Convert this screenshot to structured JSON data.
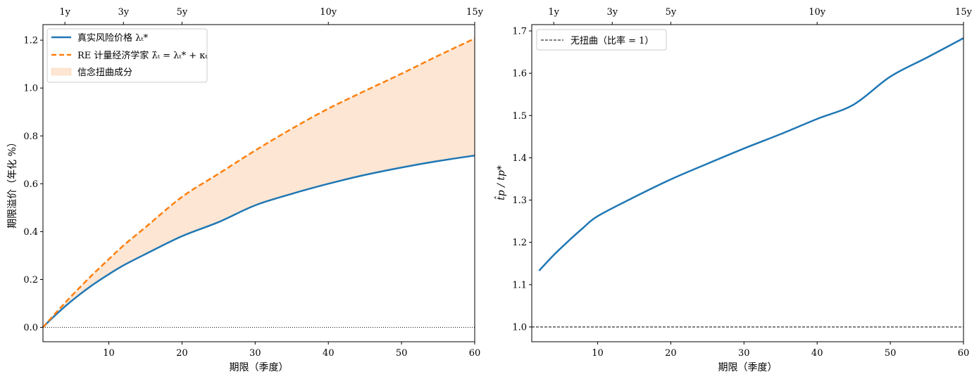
{
  "chart_data": [
    {
      "type": "line",
      "title": "",
      "xlabel": "期限（季度）",
      "ylabel": "期限溢价（年化 %）",
      "xlim": [
        1,
        60
      ],
      "ylim": [
        -0.06,
        1.265
      ],
      "x_ticks": [
        10,
        20,
        30,
        40,
        50,
        60
      ],
      "y_ticks": [
        0.0,
        0.2,
        0.4,
        0.6,
        0.8,
        1.0,
        1.2
      ],
      "y_tick_labels": [
        "0.0",
        "0.2",
        "0.4",
        "0.6",
        "0.8",
        "1.0",
        "1.2"
      ],
      "top_axis": {
        "ticks": [
          4,
          12,
          20,
          40,
          60
        ],
        "labels": [
          "1y",
          "3y",
          "5y",
          "10y",
          "15y"
        ]
      },
      "grid": false,
      "legend": {
        "position": "upper-left",
        "entries": [
          "真实风险价格 λₜ*",
          "RE 计量经济学家 λ̂ₜ = λₜ* + κₜ",
          "信念扭曲成分"
        ]
      },
      "reference_line": {
        "y": 0.0,
        "style": "dotted"
      },
      "x": [
        1,
        2,
        4,
        6,
        8,
        10,
        12,
        15,
        20,
        25,
        30,
        35,
        40,
        45,
        50,
        55,
        60
      ],
      "series": [
        {
          "name": "真实风险价格 λₜ*",
          "color": "#1f77b4",
          "style": "solid",
          "values": [
            0.0,
            0.031,
            0.087,
            0.137,
            0.182,
            0.222,
            0.259,
            0.306,
            0.381,
            0.44,
            0.51,
            0.558,
            0.6,
            0.637,
            0.668,
            0.695,
            0.718
          ]
        },
        {
          "name": "RE 计量经济学家 λ̂ₜ = λₜ* + κₜ",
          "color": "#ff7f0e",
          "style": "dashed",
          "values": [
            0.0,
            0.035,
            0.102,
            0.166,
            0.227,
            0.285,
            0.342,
            0.418,
            0.545,
            0.642,
            0.739,
            0.83,
            0.914,
            0.988,
            1.06,
            1.135,
            1.207
          ]
        }
      ],
      "fill_between": {
        "name": "信念扭曲成分",
        "color": "#fde6d3",
        "between": [
          "RE 计量经济学家 λ̂ₜ = λₜ* + κₜ",
          "真实风险价格 λₜ*"
        ]
      }
    },
    {
      "type": "line",
      "title": "",
      "xlabel": "期限（季度）",
      "ylabel": "t̂p / tp*",
      "xlim": [
        1,
        60
      ],
      "ylim": [
        0.965,
        1.715
      ],
      "x_ticks": [
        10,
        20,
        30,
        40,
        50,
        60
      ],
      "y_ticks": [
        1.0,
        1.1,
        1.2,
        1.3,
        1.4,
        1.5,
        1.6,
        1.7
      ],
      "y_tick_labels": [
        "1.0",
        "1.1",
        "1.2",
        "1.3",
        "1.4",
        "1.5",
        "1.6",
        "1.7"
      ],
      "top_axis": {
        "ticks": [
          4,
          12,
          20,
          40,
          60
        ],
        "labels": [
          "1y",
          "3y",
          "5y",
          "10y",
          "15y"
        ]
      },
      "grid": false,
      "legend": {
        "position": "upper-left",
        "entries": [
          "无扭曲（比率 = 1）"
        ]
      },
      "reference_line": {
        "y": 1.0,
        "style": "dashed",
        "label": "无扭曲（比率 = 1）"
      },
      "x": [
        2,
        4,
        6,
        8,
        10,
        15,
        20,
        25,
        30,
        35,
        40,
        45,
        50,
        55,
        60
      ],
      "series": [
        {
          "name": "",
          "color": "#1f77b4",
          "style": "solid",
          "values": [
            1.133,
            1.17,
            1.203,
            1.234,
            1.262,
            1.307,
            1.349,
            1.386,
            1.422,
            1.456,
            1.492,
            1.526,
            1.592,
            1.637,
            1.683
          ]
        }
      ]
    }
  ]
}
